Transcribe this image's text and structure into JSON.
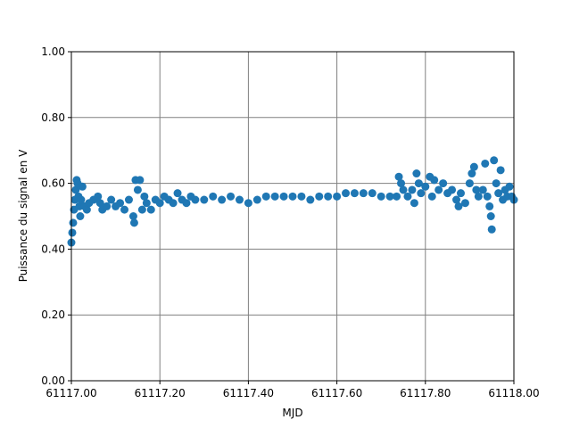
{
  "chart_data": {
    "type": "scatter",
    "xlabel": "MJD",
    "ylabel": "Puissance du signal en V",
    "series": [
      {
        "color": "#1f77b4",
        "x": [
          61117.0,
          61117.002,
          61117.004,
          61117.006,
          61117.008,
          61117.01,
          61117.012,
          61117.014,
          61117.016,
          61117.018,
          61117.02,
          61117.022,
          61117.025,
          61117.03,
          61117.035,
          61117.04,
          61117.05,
          61117.06,
          61117.065,
          61117.07,
          61117.08,
          61117.09,
          61117.1,
          61117.11,
          61117.12,
          61117.13,
          61117.14,
          61117.142,
          61117.145,
          61117.15,
          61117.155,
          61117.16,
          61117.165,
          61117.17,
          61117.18,
          61117.19,
          61117.2,
          61117.21,
          61117.22,
          61117.23,
          61117.24,
          61117.25,
          61117.26,
          61117.27,
          61117.28,
          61117.3,
          61117.32,
          61117.34,
          61117.36,
          61117.38,
          61117.4,
          61117.42,
          61117.44,
          61117.46,
          61117.48,
          61117.5,
          61117.52,
          61117.54,
          61117.56,
          61117.58,
          61117.6,
          61117.62,
          61117.64,
          61117.66,
          61117.68,
          61117.7,
          61117.72,
          61117.735,
          61117.74,
          61117.745,
          61117.75,
          61117.76,
          61117.77,
          61117.775,
          61117.78,
          61117.785,
          61117.79,
          61117.8,
          61117.81,
          61117.815,
          61117.82,
          61117.83,
          61117.84,
          61117.85,
          61117.86,
          61117.87,
          61117.875,
          61117.88,
          61117.89,
          61117.9,
          61117.905,
          61117.91,
          61117.915,
          61117.92,
          61117.93,
          61117.935,
          61117.94,
          61117.945,
          61117.948,
          61117.95,
          61117.955,
          61117.96,
          61117.965,
          61117.97,
          61117.975,
          61117.98,
          61117.985,
          61117.99,
          61117.995,
          61118.0
        ],
        "values": [
          0.42,
          0.45,
          0.48,
          0.52,
          0.55,
          0.58,
          0.61,
          0.6,
          0.56,
          0.53,
          0.5,
          0.55,
          0.59,
          0.53,
          0.52,
          0.54,
          0.55,
          0.56,
          0.54,
          0.52,
          0.53,
          0.55,
          0.53,
          0.54,
          0.52,
          0.55,
          0.5,
          0.48,
          0.61,
          0.58,
          0.61,
          0.52,
          0.56,
          0.54,
          0.52,
          0.55,
          0.54,
          0.56,
          0.55,
          0.54,
          0.57,
          0.55,
          0.54,
          0.56,
          0.55,
          0.55,
          0.56,
          0.55,
          0.56,
          0.55,
          0.54,
          0.55,
          0.56,
          0.56,
          0.56,
          0.56,
          0.56,
          0.55,
          0.56,
          0.56,
          0.56,
          0.57,
          0.57,
          0.57,
          0.57,
          0.56,
          0.56,
          0.56,
          0.62,
          0.6,
          0.58,
          0.56,
          0.58,
          0.54,
          0.63,
          0.6,
          0.57,
          0.59,
          0.62,
          0.56,
          0.61,
          0.58,
          0.6,
          0.57,
          0.58,
          0.55,
          0.53,
          0.57,
          0.54,
          0.6,
          0.63,
          0.65,
          0.58,
          0.56,
          0.58,
          0.66,
          0.56,
          0.53,
          0.5,
          0.46,
          0.67,
          0.6,
          0.57,
          0.64,
          0.55,
          0.58,
          0.56,
          0.59,
          0.56,
          0.55
        ]
      }
    ],
    "xlim": [
      61117,
      61118
    ],
    "xticks": [
      {
        "value": 61117,
        "label": "61117.00"
      },
      {
        "value": 61117.2,
        "label": "61117.20"
      },
      {
        "value": 61117.4,
        "label": "61117.40"
      },
      {
        "value": 61117.6,
        "label": "61117.60"
      },
      {
        "value": 61117.8,
        "label": "61117.80"
      },
      {
        "value": 61118,
        "label": "61118.00"
      }
    ],
    "ylim": [
      0,
      1
    ],
    "yticks": [
      {
        "value": 0,
        "label": "0.00"
      },
      {
        "value": 0.2,
        "label": "0.20"
      },
      {
        "value": 0.4,
        "label": "0.40"
      },
      {
        "value": 0.6,
        "label": "0.60"
      },
      {
        "value": 0.8,
        "label": "0.80"
      },
      {
        "value": 1,
        "label": "1.00"
      }
    ],
    "grid": true,
    "grid_color": "#808080"
  }
}
